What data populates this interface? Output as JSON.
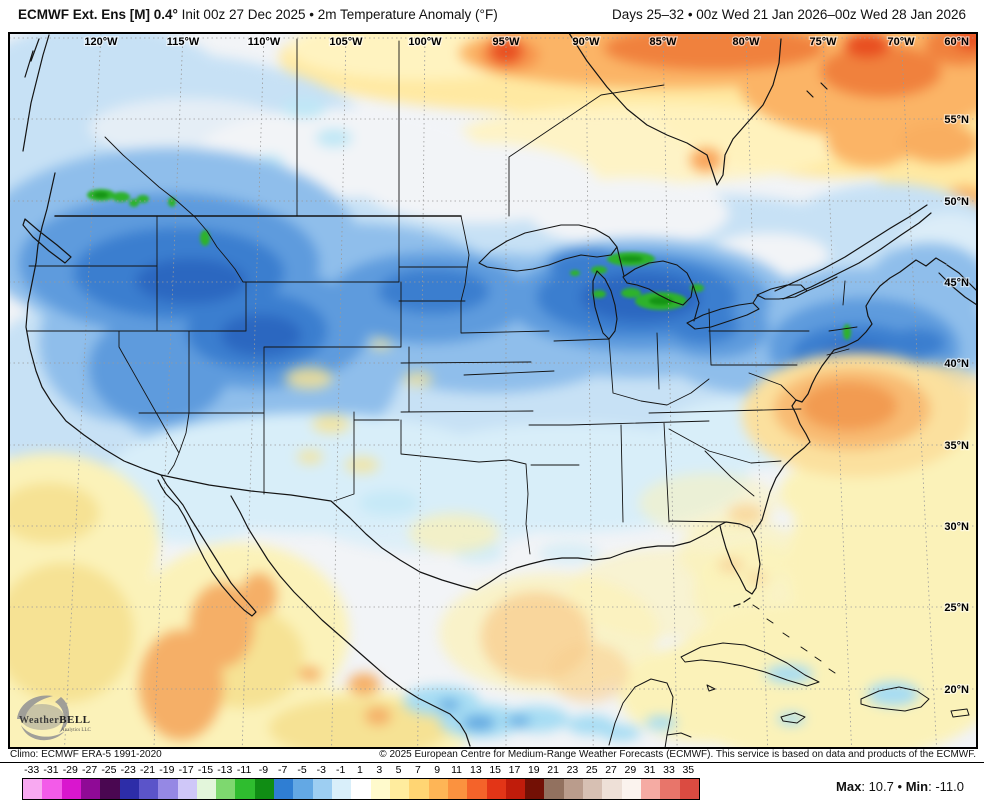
{
  "header": {
    "title_left_bold": "ECMWF Ext. Ens [M] 0.4°",
    "title_left_rest": " Init 00z 27 Dec 2025 • 2m Temperature Anomaly (°F)",
    "title_right": "Days 25–32 • 00z Wed 21 Jan 2026–00z Wed 28 Jan 2026"
  },
  "map": {
    "lon_labels": [
      "120°W",
      "115°W",
      "110°W",
      "105°W",
      "100°W",
      "95°W",
      "90°W",
      "85°W",
      "80°W",
      "75°W",
      "70°W"
    ],
    "corner_label": "60°N",
    "lat_labels": [
      "55°N",
      "50°N",
      "45°N",
      "40°N",
      "35°N",
      "30°N",
      "25°N",
      "20°N"
    ]
  },
  "logo": {
    "name_a": "Weather",
    "name_b": "BELL",
    "subtitle": "Analytics LLC"
  },
  "footer": {
    "climo": "Climo: ECMWF ERA-5 1991-2020",
    "copyright": "© 2025 European Centre for Medium-Range Weather Forecasts (ECMWF). This service is based on data and products of the ECMWF."
  },
  "colorbar": {
    "units": "°F",
    "entries": [
      {
        "value": -33,
        "color": "#F8A9F1"
      },
      {
        "value": -31,
        "color": "#F35BE9"
      },
      {
        "value": -29,
        "color": "#D916CE"
      },
      {
        "value": -27,
        "color": "#8F0A96"
      },
      {
        "value": -25,
        "color": "#4A0751"
      },
      {
        "value": -23,
        "color": "#2D2DA8"
      },
      {
        "value": -21,
        "color": "#5B54C9"
      },
      {
        "value": -19,
        "color": "#9588E4"
      },
      {
        "value": -17,
        "color": "#CFC7F8"
      },
      {
        "value": -15,
        "color": "#E3F6DB"
      },
      {
        "value": -13,
        "color": "#7ED86F"
      },
      {
        "value": -11,
        "color": "#2FBD2F"
      },
      {
        "value": -9,
        "color": "#108D14"
      },
      {
        "value": -7,
        "color": "#2F7ED3"
      },
      {
        "value": -5,
        "color": "#63A8E4"
      },
      {
        "value": -3,
        "color": "#9DCEF2"
      },
      {
        "value": -1,
        "color": "#D9EFFA"
      },
      {
        "value": 1,
        "color": "#FFFFFF"
      },
      {
        "value": 3,
        "color": "#FFFACC"
      },
      {
        "value": 5,
        "color": "#FFEC9E"
      },
      {
        "value": 7,
        "color": "#FFD573"
      },
      {
        "value": 9,
        "color": "#FEB556"
      },
      {
        "value": 11,
        "color": "#FB923F"
      },
      {
        "value": 13,
        "color": "#F4632A"
      },
      {
        "value": 15,
        "color": "#E33517"
      },
      {
        "value": 17,
        "color": "#C01C0B"
      },
      {
        "value": 19,
        "color": "#731005"
      },
      {
        "value": 21,
        "color": "#92715F"
      },
      {
        "value": 23,
        "color": "#BA9C8C"
      },
      {
        "value": 25,
        "color": "#D7C0B3"
      },
      {
        "value": 27,
        "color": "#EEE0D7"
      },
      {
        "value": 29,
        "color": "#FBF3EE"
      },
      {
        "value": 31,
        "color": "#F5ABA3"
      },
      {
        "value": 33,
        "color": "#E8756A"
      },
      {
        "value": 35,
        "color": "#DB4B41"
      }
    ]
  },
  "stats": {
    "max_label": "Max",
    "max_value": "10.7",
    "sep": "•",
    "min_label": "Min",
    "min_value": "-11.0"
  }
}
